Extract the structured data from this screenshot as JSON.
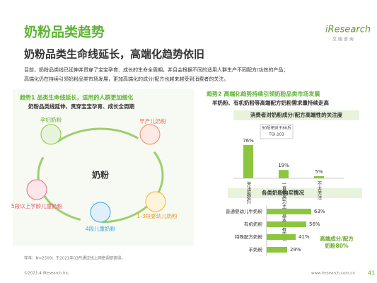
{
  "header": {
    "title": "奶粉品类趋势",
    "subtitle": "奶粉品类生命线延长，高端化趋势依旧",
    "logo": "iResearch",
    "logo_sub": "艾 瑞 咨 询"
  },
  "intro": [
    "目前，奶粉品类线已延伸并贯穿了宝宝孕育、成长的生命全周期，并且会根据不同的适用人群生产不同配方/功效的产品；",
    "高端化仍在持续引领奶粉品类市场发展，更加高端化的成分/配方也越来越受到消费者的关注。"
  ],
  "trend1": {
    "title": "趋势1 品类生命线延长，适用的人群更加细化",
    "subtitle": "奶粉品类线延伸，贯穿宝宝孕育、成长全周期",
    "center": "奶粉",
    "nodes": [
      "孕妇奶粉",
      "早产儿奶粉",
      "1-3段婴幼儿奶粉",
      "4段儿童奶粉",
      "5段以上学龄儿童奶粉"
    ]
  },
  "trend2": {
    "title": "趋势2 高端化趋势持续引领奶粉品类市场发展",
    "subtitle": "羊奶粉、有机奶粉等高端配方奶粉需求量持续走高"
  },
  "chart_data": [
    {
      "type": "bar",
      "title": "消费者对奶粉成分/配方高端性的关注度",
      "categories": [
        "关注度提升",
        "一直较高为主，基本没有变化",
        "不太关注"
      ],
      "values": [
        76,
        19,
        5
      ],
      "value_labels": [
        "76%",
        "19%",
        "5%"
      ],
      "color": "#8cc63f",
      "ylim": [
        0,
        100
      ],
      "annotations": [
        "90后相对于80后",
        "TGI:103"
      ]
    },
    {
      "type": "hbar",
      "title": "各类奶粉购买情况",
      "categories": [
        "普通婴幼儿牛奶粉",
        "有机奶粉",
        "特殊配方奶粉",
        "羊奶粉"
      ],
      "values": [
        63,
        56,
        41,
        29
      ],
      "value_labels": [
        "63%",
        "56%",
        "41%",
        "29%"
      ],
      "color": "#8cc63f",
      "xlim": [
        0,
        100
      ],
      "annotations": [
        "高端成分/配方",
        "奶粉80%"
      ]
    }
  ],
  "footer": {
    "source": "样本：N=2509；于2021年03月通过线上网络调研获得。",
    "copyright": "©2021.4 iResearch Inc.",
    "site": "www.iresearch.com.cn",
    "page": "41"
  }
}
